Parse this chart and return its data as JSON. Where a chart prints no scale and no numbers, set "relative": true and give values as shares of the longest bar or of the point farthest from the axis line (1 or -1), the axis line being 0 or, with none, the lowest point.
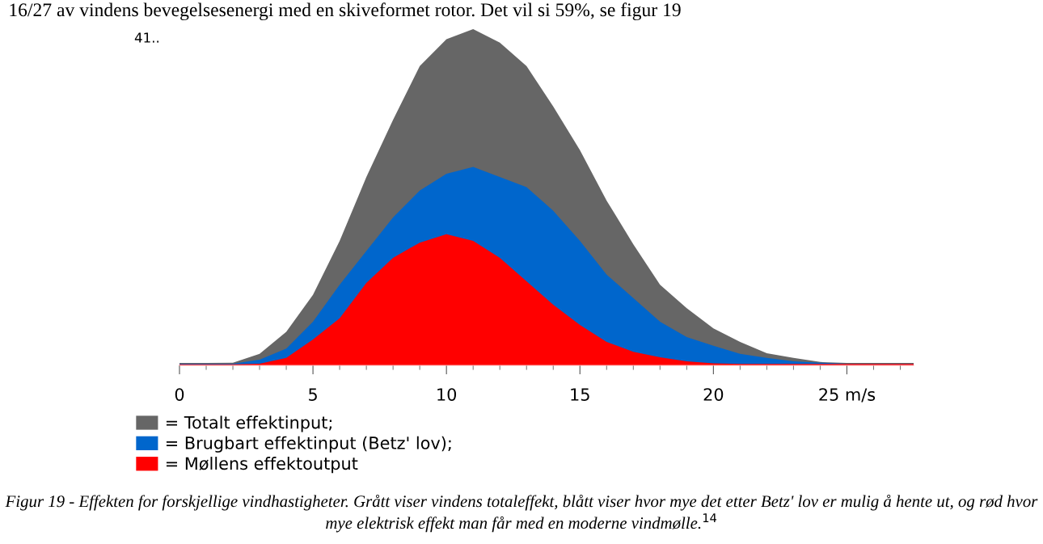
{
  "chart_data": {
    "type": "area",
    "relative": true,
    "x": [
      0,
      1,
      2,
      3,
      4,
      5,
      6,
      7,
      8,
      9,
      10,
      11,
      12,
      13,
      14,
      15,
      16,
      17,
      18,
      19,
      20,
      21,
      22,
      23,
      24,
      25,
      26,
      27.5
    ],
    "xlim": [
      0,
      27.5
    ],
    "xticks": [
      0,
      5,
      10,
      15,
      20,
      {
        "value": 25,
        "label": "25 m/s"
      }
    ],
    "series": [
      {
        "name": "= Totalt effektinput;",
        "color": "#666666",
        "values": [
          0.007,
          0.007,
          0.008,
          0.034,
          0.1,
          0.21,
          0.37,
          0.56,
          0.73,
          0.89,
          0.97,
          1.0,
          0.96,
          0.89,
          0.77,
          0.64,
          0.49,
          0.36,
          0.24,
          0.17,
          0.11,
          0.07,
          0.036,
          0.022,
          0.01,
          0.007,
          0.007,
          0.007
        ]
      },
      {
        "name": "= Brugbart effektinput (Betz' lov);",
        "color": "#0066cc",
        "values": [
          0.005,
          0.005,
          0.005,
          0.017,
          0.05,
          0.13,
          0.24,
          0.34,
          0.44,
          0.52,
          0.57,
          0.59,
          0.56,
          0.53,
          0.46,
          0.37,
          0.27,
          0.2,
          0.13,
          0.084,
          0.058,
          0.034,
          0.022,
          0.012,
          0.008,
          0.005,
          0.005,
          0.005
        ]
      },
      {
        "name": "= Møllens effektoutput",
        "color": "#ff0000",
        "values": [
          0.003,
          0.003,
          0.003,
          0.005,
          0.022,
          0.077,
          0.14,
          0.245,
          0.32,
          0.365,
          0.39,
          0.37,
          0.32,
          0.25,
          0.18,
          0.12,
          0.07,
          0.04,
          0.024,
          0.012,
          0.006,
          0.004,
          0.004,
          0.004,
          0.004,
          0.004,
          0.004,
          0.004
        ]
      }
    ],
    "legend": "bottom left",
    "grid": false,
    "annotations": [
      "16/27 av vindens bevegelsesenergi med en skiveformet rotor. Det vil si 59%, se figur 19",
      "41..",
      "Figur 19 - Effekten for forskjellige vindhastigheter. Grått viser vindens totaleffekt, blått viser hvor mye det etter Betz' lov er mulig å hente ut, og rød hvor mye elektrisk effekt man får med en moderne vindmølle.$^{14}$"
    ]
  }
}
